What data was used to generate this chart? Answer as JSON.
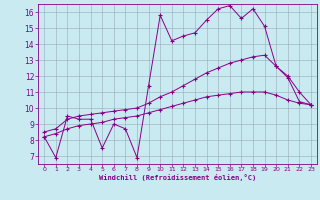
{
  "xlabel": "Windchill (Refroidissement éolien,°C)",
  "ylabel": "",
  "bg_color": "#c8eaf0",
  "line_color": "#880088",
  "grid_color": "#99aabb",
  "xlim": [
    -0.5,
    23.5
  ],
  "ylim": [
    6.5,
    16.5
  ],
  "xticks": [
    0,
    1,
    2,
    3,
    4,
    5,
    6,
    7,
    8,
    9,
    10,
    11,
    12,
    13,
    14,
    15,
    16,
    17,
    18,
    19,
    20,
    21,
    22,
    23
  ],
  "yticks": [
    7,
    8,
    9,
    10,
    11,
    12,
    13,
    14,
    15,
    16
  ],
  "line1_x": [
    0,
    1,
    2,
    3,
    4,
    5,
    6,
    7,
    8,
    9,
    10,
    11,
    12,
    13,
    14,
    15,
    16,
    17,
    18,
    19,
    20,
    21,
    22,
    23
  ],
  "line1_y": [
    8.2,
    6.9,
    9.5,
    9.3,
    9.3,
    7.5,
    9.0,
    8.7,
    6.9,
    11.4,
    15.8,
    14.2,
    14.5,
    14.7,
    15.5,
    16.2,
    16.4,
    15.6,
    16.2,
    15.1,
    12.6,
    11.9,
    10.4,
    10.2
  ],
  "line2_x": [
    0,
    1,
    2,
    3,
    4,
    5,
    6,
    7,
    8,
    9,
    10,
    11,
    12,
    13,
    14,
    15,
    16,
    17,
    18,
    19,
    20,
    21,
    22,
    23
  ],
  "line2_y": [
    8.5,
    8.7,
    9.3,
    9.5,
    9.6,
    9.7,
    9.8,
    9.9,
    10.0,
    10.3,
    10.7,
    11.0,
    11.4,
    11.8,
    12.2,
    12.5,
    12.8,
    13.0,
    13.2,
    13.3,
    12.6,
    12.0,
    11.0,
    10.2
  ],
  "line3_x": [
    0,
    1,
    2,
    3,
    4,
    5,
    6,
    7,
    8,
    9,
    10,
    11,
    12,
    13,
    14,
    15,
    16,
    17,
    18,
    19,
    20,
    21,
    22,
    23
  ],
  "line3_y": [
    8.2,
    8.4,
    8.7,
    8.9,
    9.0,
    9.1,
    9.3,
    9.4,
    9.5,
    9.7,
    9.9,
    10.1,
    10.3,
    10.5,
    10.7,
    10.8,
    10.9,
    11.0,
    11.0,
    11.0,
    10.8,
    10.5,
    10.3,
    10.2
  ]
}
